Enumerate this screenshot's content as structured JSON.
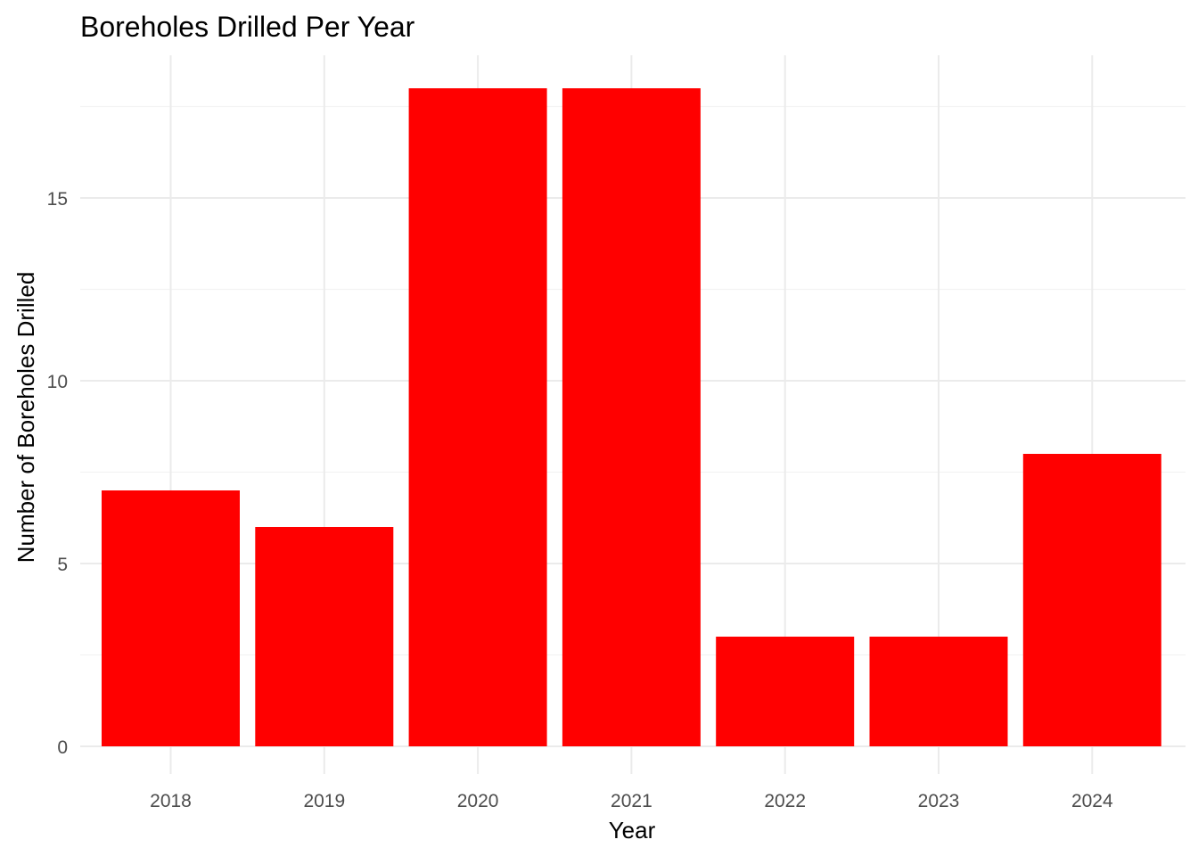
{
  "chart_data": {
    "type": "bar",
    "title": "Boreholes Drilled Per Year",
    "xlabel": "Year",
    "ylabel": "Number of Boreholes Drilled",
    "categories": [
      "2018",
      "2019",
      "2020",
      "2021",
      "2022",
      "2023",
      "2024"
    ],
    "values": [
      7,
      6,
      18,
      18,
      3,
      3,
      8
    ],
    "y_ticks": [
      "0",
      "5",
      "10",
      "15"
    ],
    "ylim": [
      0,
      18.9
    ],
    "grid": true,
    "bar_color": "#ff0000",
    "legend": "none"
  }
}
